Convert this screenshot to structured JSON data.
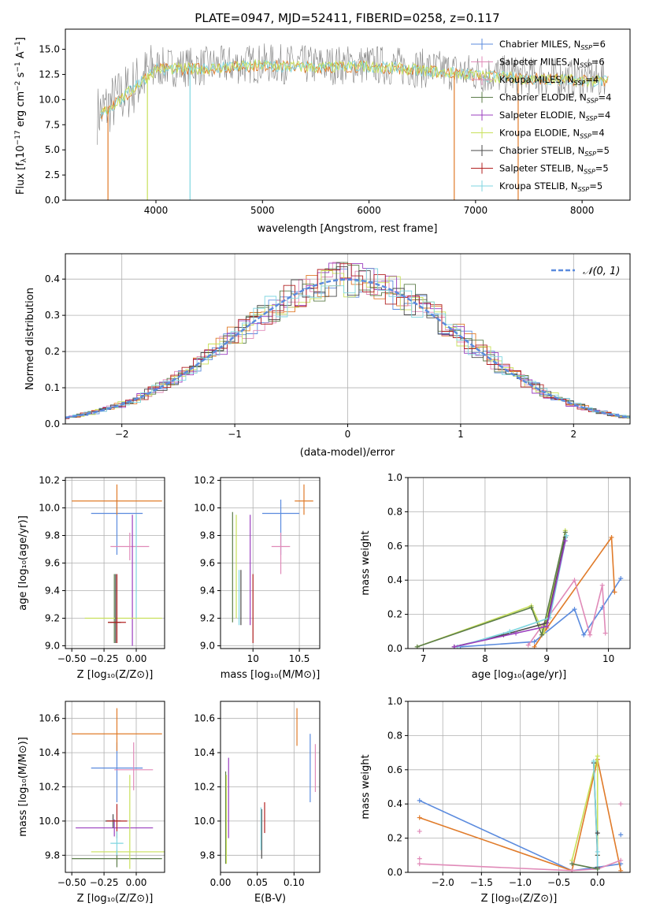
{
  "colors": {
    "blue": "#5b8bde",
    "orange": "#e07b2a",
    "pink": "#e08ab8",
    "green": "#5c7d4a",
    "purple": "#9b3fbf",
    "yellow": "#c8e05a",
    "gray": "#4a4a4a",
    "red": "#b22222",
    "cyan": "#7fd6e0",
    "data_gray": "#808080",
    "grid": "#b0b0b0"
  },
  "chart_data": [
    {
      "id": "spectrum",
      "type": "line",
      "title": "PLATE=0947, MJD=52411, FIBERID=0258, z=0.117",
      "xlabel": "wavelength [Angstrom, rest frame]",
      "ylabel": "Flux [fλ10⁻¹⁷ erg cm⁻² s⁻¹ A⁻¹]",
      "xlim": [
        3150,
        8450
      ],
      "ylim": [
        0,
        17
      ],
      "xticks": [
        4000,
        5000,
        6000,
        7000,
        8000
      ],
      "yticks": [
        0.0,
        2.5,
        5.0,
        7.5,
        10.0,
        12.5,
        15.0
      ],
      "grid": false,
      "legend_position": "top-right",
      "legend": [
        "Chabrier MILES, N_SSP=6",
        "Salpeter MILES, N_SSP=6",
        "Kroupa MILES, N_SSP=4",
        "Chabrier ELODIE, N_SSP=4",
        "Salpeter ELODIE, N_SSP=4",
        "Kroupa ELODIE, N_SSP=4",
        "Chabrier STELIB, N_SSP=5",
        "Salpeter STELIB, N_SSP=5",
        "Kroupa STELIB, N_SSP=5"
      ],
      "data_envelope": {
        "x": [
          3450,
          3700,
          4000,
          4500,
          5000,
          5500,
          6000,
          6500,
          7000,
          7500,
          8000,
          8200
        ],
        "y": [
          8.5,
          10.5,
          13.2,
          13.3,
          13.6,
          13.4,
          13.5,
          13.1,
          12.6,
          12.3,
          12.1,
          12.0
        ]
      }
    },
    {
      "id": "residuals",
      "type": "histogram",
      "xlabel": "(data-model)/error",
      "ylabel": "Normed distribution",
      "xlim": [
        -2.5,
        2.5
      ],
      "ylim": [
        0,
        0.47
      ],
      "xticks": [
        -2,
        -1,
        0,
        1,
        2
      ],
      "yticks": [
        0.0,
        0.1,
        0.2,
        0.3,
        0.4
      ],
      "grid": true,
      "legend_position": "top-right",
      "legend": [
        "𝒩(0, 1)"
      ],
      "curve": "normal(0,1)"
    },
    {
      "id": "age_vs_Z",
      "type": "errorbar",
      "xlabel": "Z [log₁₀(Z/Z⊙)]",
      "ylabel": "age  [log₁₀(age/yr)]",
      "xlim": [
        -0.55,
        0.22
      ],
      "ylim": [
        8.98,
        10.22
      ],
      "xticks": [
        -0.5,
        -0.25,
        0.0
      ],
      "xticklabels": [
        "−0.50",
        "−0.25",
        "0.00"
      ],
      "yticks": [
        9.0,
        9.2,
        9.4,
        9.6,
        9.8,
        10.0,
        10.2
      ],
      "grid": true,
      "points": [
        {
          "c": "blue",
          "x": -0.15,
          "xe": [
            0.2,
            0.2
          ],
          "y": 9.96,
          "ye": [
            0.3,
            0.1
          ]
        },
        {
          "c": "orange",
          "x": -0.15,
          "xe": [
            0.35,
            0.35
          ],
          "y": 10.05,
          "ye": [
            0.1,
            0.12
          ]
        },
        {
          "c": "pink",
          "x": -0.05,
          "xe": [
            0.15,
            0.15
          ],
          "y": 9.72,
          "ye": [
            0.1,
            0.1
          ]
        },
        {
          "c": "green",
          "x": -0.17,
          "xe": [
            0.05,
            0.05
          ],
          "y": 9.17,
          "ye": [
            0.15,
            0.35
          ]
        },
        {
          "c": "purple",
          "x": -0.03,
          "xe": [
            0.0,
            0.0
          ],
          "y": 9.2,
          "ye": [
            0.2,
            0.75
          ]
        },
        {
          "c": "yellow",
          "x": -0.1,
          "xe": [
            0.3,
            0.3
          ],
          "y": 9.2,
          "ye": [
            0.0,
            0.0
          ]
        },
        {
          "c": "gray",
          "x": -0.16,
          "xe": [
            0.04,
            0.04
          ],
          "y": 9.17,
          "ye": [
            0.15,
            0.35
          ]
        },
        {
          "c": "red",
          "x": -0.15,
          "xe": [
            0.07,
            0.07
          ],
          "y": 9.17,
          "ye": [
            0.15,
            0.35
          ]
        },
        {
          "c": "cyan",
          "x": 0.0,
          "xe": [
            0.0,
            0.0
          ],
          "y": 9.6,
          "ye": [
            0.4,
            0.35
          ]
        }
      ]
    },
    {
      "id": "age_vs_mass",
      "type": "errorbar",
      "xlabel": "mass [log₁₀(M/M⊙)]",
      "ylabel": "",
      "xlim": [
        9.65,
        10.72
      ],
      "ylim": [
        8.98,
        10.22
      ],
      "xticks": [
        10.0,
        10.5
      ],
      "yticks": [
        9.0,
        9.2,
        9.4,
        9.6,
        9.8,
        10.0,
        10.2
      ],
      "grid": true,
      "points": [
        {
          "c": "blue",
          "x": 10.3,
          "xe": [
            0.2,
            0.2
          ],
          "y": 9.96,
          "ye": [
            0.3,
            0.1
          ]
        },
        {
          "c": "orange",
          "x": 10.55,
          "xe": [
            0.1,
            0.1
          ],
          "y": 10.05,
          "ye": [
            0.1,
            0.12
          ]
        },
        {
          "c": "pink",
          "x": 10.3,
          "xe": [
            0.1,
            0.1
          ],
          "y": 9.72,
          "ye": [
            0.2,
            0.1
          ]
        },
        {
          "c": "green",
          "x": 9.78,
          "xe": [
            0.0,
            0.0
          ],
          "y": 9.57,
          "ye": [
            0.4,
            0.4
          ]
        },
        {
          "c": "purple",
          "x": 9.97,
          "xe": [
            0.0,
            0.0
          ],
          "y": 9.55,
          "ye": [
            0.4,
            0.4
          ]
        },
        {
          "c": "yellow",
          "x": 9.82,
          "xe": [
            0.0,
            0.0
          ],
          "y": 9.6,
          "ye": [
            0.4,
            0.35
          ]
        },
        {
          "c": "gray",
          "x": 9.87,
          "xe": [
            0.0,
            0.0
          ],
          "y": 9.35,
          "ye": [
            0.2,
            0.2
          ]
        },
        {
          "c": "red",
          "x": 10.0,
          "xe": [
            0.0,
            0.0
          ],
          "y": 9.3,
          "ye": [
            0.28,
            0.22
          ]
        },
        {
          "c": "cyan",
          "x": 9.85,
          "xe": [
            0.0,
            0.0
          ],
          "y": 9.35,
          "ye": [
            0.2,
            0.2
          ]
        }
      ]
    },
    {
      "id": "weight_vs_age",
      "type": "line",
      "xlabel": "age  [log₁₀(age/yr)]",
      "ylabel": "mass weight",
      "xlim": [
        6.75,
        10.35
      ],
      "ylim": [
        0,
        1.0
      ],
      "xticks": [
        7,
        8,
        9,
        10
      ],
      "yticks": [
        0.0,
        0.2,
        0.4,
        0.6,
        0.8,
        1.0
      ],
      "grid": true,
      "series": [
        {
          "c": "blue",
          "x": [
            7.6,
            8.8,
            9.45,
            9.6,
            9.9,
            10.2
          ],
          "y": [
            0.01,
            0.04,
            0.23,
            0.08,
            0.24,
            0.41
          ]
        },
        {
          "c": "orange",
          "x": [
            8.8,
            9.0,
            10.05,
            10.1
          ],
          "y": [
            0.01,
            0.12,
            0.65,
            0.33
          ]
        },
        {
          "c": "pink",
          "x": [
            8.7,
            9.45,
            9.7,
            9.9,
            9.95
          ],
          "y": [
            0.02,
            0.4,
            0.08,
            0.37,
            0.09
          ]
        },
        {
          "c": "yellow",
          "x": [
            6.9,
            8.75,
            8.95,
            9.3
          ],
          "y": [
            0.01,
            0.25,
            0.09,
            0.69
          ]
        },
        {
          "c": "green",
          "x": [
            6.9,
            8.75,
            8.92,
            9.3
          ],
          "y": [
            0.01,
            0.24,
            0.08,
            0.68
          ]
        },
        {
          "c": "gray",
          "x": [
            7.5,
            8.3,
            9.0,
            9.3
          ],
          "y": [
            0.01,
            0.08,
            0.15,
            0.65
          ]
        },
        {
          "c": "cyan",
          "x": [
            7.55,
            8.4,
            9.05,
            9.32
          ],
          "y": [
            0.01,
            0.1,
            0.18,
            0.66
          ]
        },
        {
          "c": "purple",
          "x": [
            7.5,
            8.5,
            9.0,
            9.3
          ],
          "y": [
            0.01,
            0.09,
            0.13,
            0.63
          ]
        }
      ]
    },
    {
      "id": "mass_vs_Z",
      "type": "errorbar",
      "xlabel": "Z [log₁₀(Z/Z⊙)]",
      "ylabel": "mass [log₁₀(M/M⊙)]",
      "xlim": [
        -0.55,
        0.22
      ],
      "ylim": [
        9.7,
        10.7
      ],
      "xticks": [
        -0.5,
        -0.25,
        0.0
      ],
      "xticklabels": [
        "−0.50",
        "−0.25",
        "0.00"
      ],
      "yticks": [
        9.8,
        10.0,
        10.2,
        10.4,
        10.6
      ],
      "grid": true,
      "points": [
        {
          "c": "blue",
          "x": -0.15,
          "xe": [
            0.2,
            0.2
          ],
          "y": 10.31,
          "ye": [
            0.2,
            0.15
          ]
        },
        {
          "c": "orange",
          "x": -0.15,
          "xe": [
            0.35,
            0.35
          ],
          "y": 10.51,
          "ye": [
            0.1,
            0.15
          ]
        },
        {
          "c": "pink",
          "x": -0.02,
          "xe": [
            0.15,
            0.15
          ],
          "y": 10.3,
          "ye": [
            0.12,
            0.16
          ]
        },
        {
          "c": "green",
          "x": -0.15,
          "xe": [
            0.35,
            0.35
          ],
          "y": 9.78,
          "ye": [
            0.05,
            0.05
          ]
        },
        {
          "c": "purple",
          "x": -0.17,
          "xe": [
            0.3,
            0.3
          ],
          "y": 9.96,
          "ye": [
            0.05,
            0.05
          ]
        },
        {
          "c": "yellow",
          "x": -0.05,
          "xe": [
            0.3,
            0.3
          ],
          "y": 9.82,
          "ye": [
            0.1,
            0.45
          ]
        },
        {
          "c": "gray",
          "x": -0.18,
          "xe": [
            0.06,
            0.06
          ],
          "y": 10.0,
          "ye": [
            0.04,
            0.04
          ]
        },
        {
          "c": "red",
          "x": -0.15,
          "xe": [
            0.08,
            0.08
          ],
          "y": 10.0,
          "ye": [
            0.1,
            0.1
          ]
        },
        {
          "c": "cyan",
          "x": -0.15,
          "xe": [
            0.05,
            0.05
          ],
          "y": 9.87,
          "ye": [
            0.07,
            0.07
          ]
        }
      ]
    },
    {
      "id": "mass_vs_ebv",
      "type": "errorbar",
      "xlabel": "E(B-V)",
      "ylabel": "",
      "xlim": [
        0.0,
        0.135
      ],
      "ylim": [
        9.7,
        10.7
      ],
      "xticks": [
        0.0,
        0.05,
        0.1
      ],
      "xticklabels": [
        "0.00",
        "0.05",
        "0.10"
      ],
      "yticks": [
        9.8,
        10.0,
        10.2,
        10.4,
        10.6
      ],
      "grid": true,
      "points": [
        {
          "c": "blue",
          "x": 0.122,
          "xe": [
            0,
            0
          ],
          "y": 10.31,
          "ye": [
            0.2,
            0.2
          ]
        },
        {
          "c": "orange",
          "x": 0.104,
          "xe": [
            0,
            0
          ],
          "y": 10.55,
          "ye": [
            0.11,
            0.11
          ]
        },
        {
          "c": "pink",
          "x": 0.129,
          "xe": [
            0,
            0
          ],
          "y": 10.31,
          "ye": [
            0.14,
            0.14
          ]
        },
        {
          "c": "green",
          "x": 0.007,
          "xe": [
            0,
            0
          ],
          "y": 10.0,
          "ye": [
            0.25,
            0.29
          ]
        },
        {
          "c": "purple",
          "x": 0.011,
          "xe": [
            0,
            0
          ],
          "y": 10.13,
          "ye": [
            0.23,
            0.24
          ]
        },
        {
          "c": "yellow",
          "x": 0.008,
          "xe": [
            0,
            0
          ],
          "y": 10.0,
          "ye": [
            0.25,
            0.27
          ]
        },
        {
          "c": "gray",
          "x": 0.056,
          "xe": [
            0,
            0
          ],
          "y": 9.92,
          "ye": [
            0.14,
            0.15
          ]
        },
        {
          "c": "red",
          "x": 0.06,
          "xe": [
            0,
            0
          ],
          "y": 10.02,
          "ye": [
            0.09,
            0.09
          ]
        },
        {
          "c": "cyan",
          "x": 0.055,
          "xe": [
            0,
            0
          ],
          "y": 9.95,
          "ye": [
            0.12,
            0.13
          ]
        }
      ]
    },
    {
      "id": "weight_vs_Z",
      "type": "line",
      "xlabel": "Z [log₁₀(Z/Z⊙)]",
      "ylabel": "mass weight",
      "xlim": [
        -2.45,
        0.42
      ],
      "ylim": [
        0,
        1.0
      ],
      "xticks": [
        -2.0,
        -1.5,
        -1.0,
        -0.5,
        0.0
      ],
      "xticklabels": [
        "−2.0",
        "−1.5",
        "−1.0",
        "−0.5",
        "0.0"
      ],
      "yticks": [
        0.0,
        0.2,
        0.4,
        0.6,
        0.8,
        1.0
      ],
      "grid": true,
      "series": [
        {
          "c": "blue",
          "x": [
            -2.3,
            -0.33,
            0.0,
            0.3
          ],
          "y": [
            0.42,
            0.01,
            0.03,
            0.05
          ]
        },
        {
          "c": "orange",
          "x": [
            -2.3,
            -0.33,
            0.0,
            0.3
          ],
          "y": [
            0.32,
            0.01,
            0.66,
            0.01
          ]
        },
        {
          "c": "pink",
          "x": [
            -2.3,
            -0.33,
            0.0,
            0.3
          ],
          "y": [
            0.05,
            0.01,
            0.02,
            0.07
          ]
        },
        {
          "c": "yellow",
          "x": [
            -0.33,
            0.0,
            0.0
          ],
          "y": [
            0.07,
            0.68,
            0.1
          ]
        },
        {
          "c": "gray",
          "x": [
            -0.05,
            0.0,
            0.0
          ],
          "y": [
            0.64,
            0.1,
            0.03
          ]
        },
        {
          "c": "cyan",
          "x": [
            -0.05,
            0.0,
            0.0
          ],
          "y": [
            0.65,
            0.12,
            0.02
          ]
        },
        {
          "c": "green",
          "x": [
            -0.33,
            0.0
          ],
          "y": [
            0.05,
            0.02
          ]
        }
      ],
      "markers": [
        {
          "c": "pink",
          "x": -2.3,
          "y": 0.24
        },
        {
          "c": "pink",
          "x": -2.3,
          "y": 0.08
        },
        {
          "c": "pink",
          "x": 0.3,
          "y": 0.4
        },
        {
          "c": "blue",
          "x": 0.3,
          "y": 0.22
        },
        {
          "c": "gray",
          "x": 0.0,
          "y": 0.23
        }
      ]
    }
  ]
}
